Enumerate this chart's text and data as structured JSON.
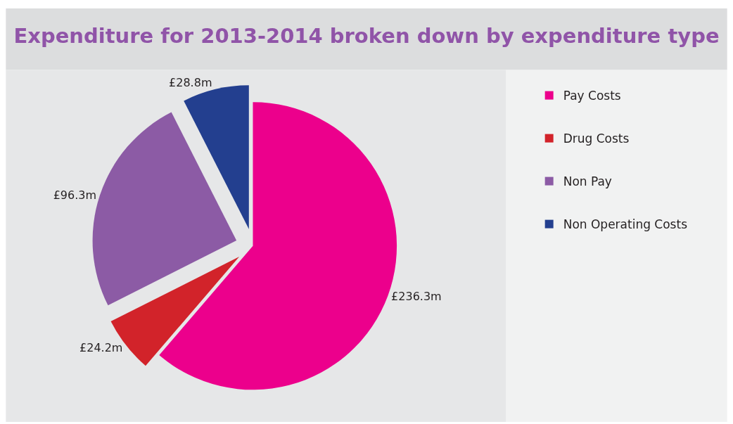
{
  "chart_data": {
    "type": "pie",
    "title": "Expenditure for 2013-2014 broken down by expenditure type",
    "categories": [
      "Pay Costs",
      "Drug Costs",
      "Non Pay",
      "Non Operating Costs"
    ],
    "values": [
      236.3,
      24.2,
      96.3,
      28.8
    ],
    "colors": [
      "#ec008c",
      "#d2232a",
      "#8c5ba5",
      "#233f8f"
    ],
    "value_labels": [
      "£236.3m",
      "£24.2m",
      "£96.3m",
      "£28.8m"
    ],
    "legend": "right"
  }
}
